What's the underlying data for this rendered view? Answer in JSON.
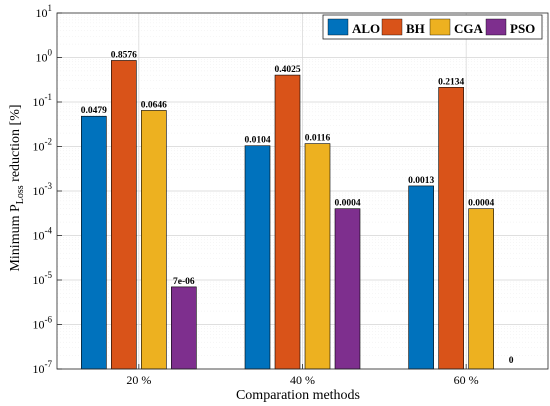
{
  "chart_data": {
    "type": "bar",
    "yscale": "log",
    "categories": [
      "20 %",
      "40 %",
      "60 %"
    ],
    "xlabel": "Comparation methods",
    "ylabel": {
      "prefix": "Minimum P",
      "subscript": "Loss",
      "suffix": " reduction [%]"
    },
    "ylim": [
      1e-07,
      10
    ],
    "yticks": [
      {
        "value": 1e-07,
        "base": "10",
        "exp": "-7"
      },
      {
        "value": 1e-06,
        "base": "10",
        "exp": "-6"
      },
      {
        "value": 1e-05,
        "base": "10",
        "exp": "-5"
      },
      {
        "value": 0.0001,
        "base": "10",
        "exp": "-4"
      },
      {
        "value": 0.001,
        "base": "10",
        "exp": "-3"
      },
      {
        "value": 0.01,
        "base": "10",
        "exp": "-2"
      },
      {
        "value": 0.1,
        "base": "10",
        "exp": "-1"
      },
      {
        "value": 1,
        "base": "10",
        "exp": "0"
      },
      {
        "value": 10,
        "base": "10",
        "exp": "1"
      }
    ],
    "grid": true,
    "legend_position": "top-right",
    "series": [
      {
        "name": "ALO",
        "color": "#0072BD",
        "values": [
          0.0479,
          0.0104,
          0.0013
        ],
        "labels": [
          "0.0479",
          "0.0104",
          "0.0013"
        ]
      },
      {
        "name": "BH",
        "color": "#D95319",
        "values": [
          0.8576,
          0.4025,
          0.2134
        ],
        "labels": [
          "0.8576",
          "0.4025",
          "0.2134"
        ]
      },
      {
        "name": "CGA",
        "color": "#EDB120",
        "values": [
          0.0646,
          0.0116,
          0.0004
        ],
        "labels": [
          "0.0646",
          "0.0116",
          "0.0004"
        ]
      },
      {
        "name": "PSO",
        "color": "#7E2F8E",
        "values": [
          7e-06,
          0.0004,
          0
        ],
        "labels": [
          "7e-06",
          "0.0004",
          "0"
        ]
      }
    ]
  }
}
